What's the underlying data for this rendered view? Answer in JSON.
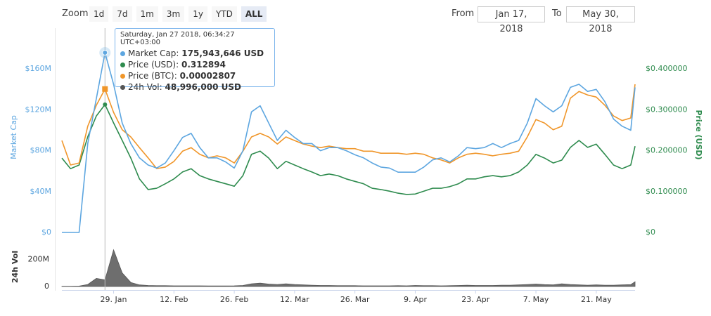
{
  "controls": {
    "zoom_label": "Zoom",
    "buttons": [
      "1d",
      "7d",
      "1m",
      "3m",
      "1y",
      "YTD",
      "ALL"
    ],
    "from_label": "From",
    "from": "Jan 17, 2018",
    "to_label": "To",
    "to": "May 30, 2018"
  },
  "tooltip": {
    "date": "Saturday, Jan 27 2018, 06:34:27 UTC+03:00",
    "items": [
      {
        "label": "Market Cap:",
        "value": "175,943,646 USD"
      },
      {
        "label": "Price (USD):",
        "value": "0.312894"
      },
      {
        "label": "Price (BTC):",
        "value": "0.00002807"
      },
      {
        "label": "24h Vol:",
        "value": "48,996,000 USD"
      }
    ]
  },
  "chart_data": {
    "type": "line",
    "x": [
      "2018-01-17",
      "2018-01-19",
      "2018-01-21",
      "2018-01-23",
      "2018-01-25",
      "2018-01-27",
      "2018-01-29",
      "2018-01-31",
      "2018-02-02",
      "2018-02-04",
      "2018-02-06",
      "2018-02-08",
      "2018-02-10",
      "2018-02-12",
      "2018-02-14",
      "2018-02-16",
      "2018-02-18",
      "2018-02-20",
      "2018-02-22",
      "2018-02-24",
      "2018-02-26",
      "2018-02-28",
      "2018-03-02",
      "2018-03-04",
      "2018-03-06",
      "2018-03-08",
      "2018-03-10",
      "2018-03-12",
      "2018-03-14",
      "2018-03-16",
      "2018-03-18",
      "2018-03-20",
      "2018-03-22",
      "2018-03-24",
      "2018-03-26",
      "2018-03-28",
      "2018-03-30",
      "2018-04-01",
      "2018-04-03",
      "2018-04-05",
      "2018-04-07",
      "2018-04-09",
      "2018-04-11",
      "2018-04-13",
      "2018-04-15",
      "2018-04-17",
      "2018-04-19",
      "2018-04-21",
      "2018-04-23",
      "2018-04-25",
      "2018-04-27",
      "2018-04-29",
      "2018-05-01",
      "2018-05-03",
      "2018-05-05",
      "2018-05-07",
      "2018-05-09",
      "2018-05-11",
      "2018-05-13",
      "2018-05-15",
      "2018-05-17",
      "2018-05-19",
      "2018-05-21",
      "2018-05-23",
      "2018-05-25",
      "2018-05-27",
      "2018-05-29",
      "2018-05-30"
    ],
    "xlim": [
      "2018-01-17",
      "2018-05-30"
    ],
    "xticks": [
      {
        "value": "2018-01-29",
        "label": "29. Jan"
      },
      {
        "value": "2018-02-12",
        "label": "12. Feb"
      },
      {
        "value": "2018-02-26",
        "label": "26. Feb"
      },
      {
        "value": "2018-03-12",
        "label": "12. Mar"
      },
      {
        "value": "2018-03-26",
        "label": "26. Mar"
      },
      {
        "value": "2018-04-09",
        "label": "9. Apr"
      },
      {
        "value": "2018-04-23",
        "label": "23. Apr"
      },
      {
        "value": "2018-05-07",
        "label": "7. May"
      },
      {
        "value": "2018-05-21",
        "label": "21. May"
      }
    ],
    "ylabel": "Market Cap",
    "ylim": [
      0,
      200000000
    ],
    "yticks": [
      {
        "value": 0,
        "label": "$0"
      },
      {
        "value": 40000000,
        "label": "$40M"
      },
      {
        "value": 80000000,
        "label": "$80M"
      },
      {
        "value": 120000000,
        "label": "$120M"
      },
      {
        "value": 160000000,
        "label": "$160M"
      }
    ],
    "y2label": "Price (USD)",
    "y2lim": [
      0,
      0.5
    ],
    "y2ticks": [
      {
        "value": 0,
        "label": "$0"
      },
      {
        "value": 0.1,
        "label": "$0.100000"
      },
      {
        "value": 0.2,
        "label": "$0.200000"
      },
      {
        "value": 0.3,
        "label": "$0.300000"
      },
      {
        "value": 0.4,
        "label": "$0.400000"
      }
    ],
    "y3lim": [
      0,
      4e-05
    ],
    "vollabel": "24h Vol",
    "vollim": [
      0,
      300000000
    ],
    "volticks": [
      0,
      {
        "value": 200000000,
        "label": "200M"
      }
    ],
    "grid": false,
    "series": [
      {
        "name": "Price (USD)",
        "color": "#2e8b4e",
        "axis": "y2",
        "values": [
          0.182,
          0.156,
          0.165,
          0.234,
          0.285,
          0.312894,
          0.268,
          0.225,
          0.182,
          0.131,
          0.105,
          0.108,
          0.119,
          0.131,
          0.148,
          0.156,
          0.139,
          0.131,
          0.125,
          0.119,
          0.113,
          0.139,
          0.191,
          0.199,
          0.182,
          0.156,
          0.174,
          0.165,
          0.156,
          0.148,
          0.139,
          0.143,
          0.139,
          0.131,
          0.125,
          0.119,
          0.108,
          0.105,
          0.101,
          0.096,
          0.093,
          0.094,
          0.101,
          0.108,
          0.108,
          0.112,
          0.119,
          0.131,
          0.131,
          0.136,
          0.139,
          0.136,
          0.139,
          0.148,
          0.165,
          0.191,
          0.182,
          0.17,
          0.177,
          0.208,
          0.225,
          0.208,
          0.216,
          0.191,
          0.165,
          0.156,
          0.165,
          0.211
        ]
      },
      {
        "name": "Price (BTC)",
        "color": "#f0962a",
        "axis": "y3",
        "values": [
          1.8e-05,
          1.32e-05,
          1.36e-05,
          2.08e-05,
          2.49e-05,
          2.807e-05,
          2.35e-05,
          2.01e-05,
          1.87e-05,
          1.66e-05,
          1.46e-05,
          1.25e-05,
          1.28e-05,
          1.39e-05,
          1.59e-05,
          1.66e-05,
          1.53e-05,
          1.46e-05,
          1.5e-05,
          1.46e-05,
          1.36e-05,
          1.59e-05,
          1.87e-05,
          1.94e-05,
          1.87e-05,
          1.73e-05,
          1.87e-05,
          1.8e-05,
          1.73e-05,
          1.69e-05,
          1.66e-05,
          1.69e-05,
          1.66e-05,
          1.64e-05,
          1.64e-05,
          1.59e-05,
          1.59e-05,
          1.55e-05,
          1.55e-05,
          1.55e-05,
          1.53e-05,
          1.55e-05,
          1.53e-05,
          1.46e-05,
          1.42e-05,
          1.36e-05,
          1.46e-05,
          1.53e-05,
          1.55e-05,
          1.53e-05,
          1.5e-05,
          1.53e-05,
          1.55e-05,
          1.59e-05,
          1.87e-05,
          2.21e-05,
          2.14e-05,
          2.01e-05,
          2.08e-05,
          2.63e-05,
          2.76e-05,
          2.69e-05,
          2.65e-05,
          2.49e-05,
          2.28e-05,
          2.19e-05,
          2.24e-05,
          2.9e-05
        ]
      },
      {
        "name": "Market Cap",
        "color": "#5da6e0",
        "axis": "y",
        "values": [
          0,
          0,
          0,
          87000000,
          131000000,
          175943646,
          145000000,
          107000000,
          87000000,
          73000000,
          66000000,
          63000000,
          68000000,
          80000000,
          93000000,
          97000000,
          83000000,
          73000000,
          73000000,
          69000000,
          63000000,
          80000000,
          118000000,
          124000000,
          107000000,
          90000000,
          100000000,
          93000000,
          87000000,
          87000000,
          80000000,
          83000000,
          83000000,
          80000000,
          76000000,
          73000000,
          68000000,
          64000000,
          63000000,
          59000000,
          59000000,
          59000000,
          64000000,
          71000000,
          73000000,
          69000000,
          75000000,
          83000000,
          82000000,
          83000000,
          87000000,
          83000000,
          87000000,
          90000000,
          107000000,
          131000000,
          124000000,
          118000000,
          124000000,
          142000000,
          145000000,
          138000000,
          140000000,
          128000000,
          111000000,
          104000000,
          100000000,
          142000000
        ]
      },
      {
        "name": "24h Vol",
        "color": "#555555",
        "axis": "vol",
        "values": [
          2000000,
          2000000,
          3000000,
          15000000,
          60000000,
          48996000,
          270000000,
          100000000,
          30000000,
          12000000,
          8000000,
          6000000,
          6000000,
          5000000,
          5000000,
          5000000,
          5000000,
          4000000,
          4000000,
          4000000,
          5000000,
          8000000,
          20000000,
          25000000,
          18000000,
          15000000,
          20000000,
          15000000,
          12000000,
          10000000,
          8000000,
          8000000,
          6000000,
          6000000,
          6000000,
          5000000,
          5000000,
          5000000,
          5000000,
          6000000,
          5000000,
          8000000,
          6000000,
          6000000,
          5000000,
          6000000,
          8000000,
          10000000,
          8000000,
          8000000,
          8000000,
          10000000,
          10000000,
          12000000,
          15000000,
          18000000,
          14000000,
          12000000,
          20000000,
          15000000,
          12000000,
          10000000,
          12000000,
          10000000,
          10000000,
          12000000,
          14000000,
          35000000
        ]
      }
    ]
  }
}
